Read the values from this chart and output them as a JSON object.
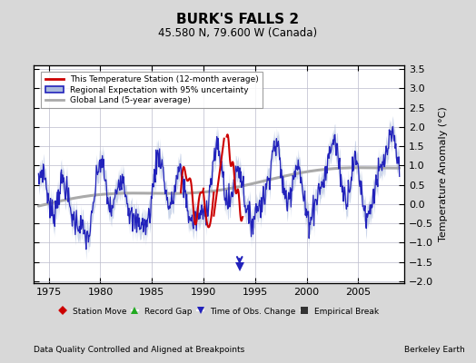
{
  "title": "BURK'S FALLS 2",
  "subtitle": "45.580 N, 79.600 W (Canada)",
  "ylabel": "Temperature Anomaly (°C)",
  "footer_left": "Data Quality Controlled and Aligned at Breakpoints",
  "footer_right": "Berkeley Earth",
  "xlim": [
    1973.5,
    2009.5
  ],
  "ylim": [
    -2.05,
    3.6
  ],
  "yticks": [
    -2,
    -1.5,
    -1,
    -0.5,
    0,
    0.5,
    1,
    1.5,
    2,
    2.5,
    3,
    3.5
  ],
  "xticks": [
    1975,
    1980,
    1985,
    1990,
    1995,
    2000,
    2005
  ],
  "bg_color": "#d8d8d8",
  "plot_bg": "#ffffff",
  "station_color": "#cc0000",
  "regional_color": "#2222bb",
  "regional_fill": "#aabbdd",
  "global_color": "#aaaaaa",
  "legend_marker_colors": {
    "station_move": "#cc0000",
    "record_gap": "#22aa22",
    "time_obs": "#2222bb",
    "empirical": "#333333"
  }
}
